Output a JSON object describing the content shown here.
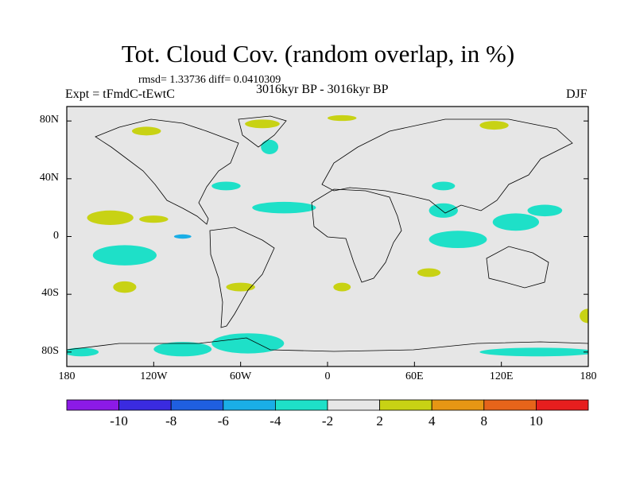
{
  "title": "Tot. Cloud Cov. (random overlap, in %)",
  "stats_line": "rmsd= 1.33736 diff= 0.0410309",
  "left_label": "Expt = tFmdC-tEwtC",
  "center_label": "3016kyr BP - 3016kyr BP",
  "right_label": "DJF",
  "map": {
    "background_color": "#e6e6e6",
    "lat_ticks": [
      "80N",
      "40N",
      "0",
      "40S",
      "80S"
    ],
    "lat_values": [
      80,
      40,
      0,
      -40,
      -80
    ],
    "lon_ticks": [
      "180",
      "120W",
      "60W",
      "0",
      "60E",
      "120E",
      "180"
    ],
    "lon_values": [
      -180,
      -120,
      -60,
      0,
      60,
      120,
      180
    ],
    "lon_range": [
      -180,
      180
    ],
    "lat_range": [
      -90,
      90
    ]
  },
  "colorbar": {
    "colors": [
      "#8c1ae6",
      "#3a2be0",
      "#1f5fe0",
      "#1aaee6",
      "#1ee0c8",
      "#e6e6e6",
      "#c8d214",
      "#e69614",
      "#e6641a",
      "#e61e1e"
    ],
    "labels": [
      "-10",
      "-8",
      "-6",
      "-4",
      "-2",
      "2",
      "4",
      "8",
      "10"
    ]
  },
  "field": [
    {
      "lon": -170,
      "lat": -80,
      "rx": 12,
      "ry": 3,
      "color": "#1ee0c8"
    },
    {
      "lon": -100,
      "lat": -78,
      "rx": 20,
      "ry": 5,
      "color": "#1ee0c8"
    },
    {
      "lon": -55,
      "lat": -74,
      "rx": 25,
      "ry": 7,
      "color": "#1ee0c8"
    },
    {
      "lon": 145,
      "lat": -80,
      "rx": 40,
      "ry": 3,
      "color": "#1ee0c8"
    },
    {
      "lon": -140,
      "lat": -13,
      "rx": 22,
      "ry": 7,
      "color": "#1ee0c8"
    },
    {
      "lon": -100,
      "lat": 0,
      "rx": 6,
      "ry": 1.5,
      "color": "#1aaee6"
    },
    {
      "lon": -150,
      "lat": 13,
      "rx": 16,
      "ry": 5,
      "color": "#c8d214"
    },
    {
      "lon": -120,
      "lat": 12,
      "rx": 10,
      "ry": 2.5,
      "color": "#c8d214"
    },
    {
      "lon": -30,
      "lat": 20,
      "rx": 22,
      "ry": 4,
      "color": "#1ee0c8"
    },
    {
      "lon": 90,
      "lat": -2,
      "rx": 20,
      "ry": 6,
      "color": "#1ee0c8"
    },
    {
      "lon": 130,
      "lat": 10,
      "rx": 16,
      "ry": 6,
      "color": "#1ee0c8"
    },
    {
      "lon": 150,
      "lat": 18,
      "rx": 12,
      "ry": 4,
      "color": "#1ee0c8"
    },
    {
      "lon": 80,
      "lat": 18,
      "rx": 10,
      "ry": 5,
      "color": "#1ee0c8"
    },
    {
      "lon": -45,
      "lat": 78,
      "rx": 12,
      "ry": 3,
      "color": "#c8d214"
    },
    {
      "lon": -125,
      "lat": 73,
      "rx": 10,
      "ry": 3,
      "color": "#c8d214"
    },
    {
      "lon": 10,
      "lat": 82,
      "rx": 10,
      "ry": 2,
      "color": "#c8d214"
    },
    {
      "lon": 115,
      "lat": 77,
      "rx": 10,
      "ry": 3,
      "color": "#c8d214"
    },
    {
      "lon": -40,
      "lat": 62,
      "rx": 6,
      "ry": 5,
      "color": "#1ee0c8"
    },
    {
      "lon": -60,
      "lat": -35,
      "rx": 10,
      "ry": 3,
      "color": "#c8d214"
    },
    {
      "lon": -140,
      "lat": -35,
      "rx": 8,
      "ry": 4,
      "color": "#c8d214"
    },
    {
      "lon": 10,
      "lat": -35,
      "rx": 6,
      "ry": 3,
      "color": "#c8d214"
    },
    {
      "lon": 70,
      "lat": -25,
      "rx": 8,
      "ry": 3,
      "color": "#c8d214"
    },
    {
      "lon": 180,
      "lat": -55,
      "rx": 6,
      "ry": 5,
      "color": "#c8d214"
    },
    {
      "lon": -70,
      "lat": 35,
      "rx": 10,
      "ry": 3,
      "color": "#1ee0c8"
    },
    {
      "lon": 80,
      "lat": 35,
      "rx": 8,
      "ry": 3,
      "color": "#1ee0c8"
    }
  ]
}
